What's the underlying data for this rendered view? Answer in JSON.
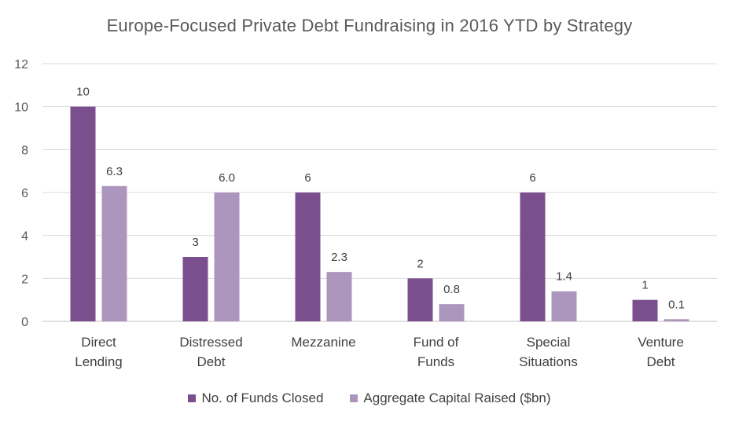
{
  "chart_data": {
    "type": "bar",
    "title": "Europe-Focused Private Debt Fundraising in 2016 YTD by Strategy",
    "categories": [
      [
        "Direct",
        "Lending"
      ],
      [
        "Distressed",
        "Debt"
      ],
      [
        "Mezzanine"
      ],
      [
        "Fund of",
        "Funds"
      ],
      [
        "Special",
        "Situations"
      ],
      [
        "Venture",
        "Debt"
      ]
    ],
    "series": [
      {
        "name": "No. of Funds Closed",
        "color": "#7B4F8E",
        "values": [
          10,
          3,
          6,
          2,
          6,
          1
        ],
        "labels": [
          "10",
          "3",
          "6",
          "2",
          "6",
          "1"
        ]
      },
      {
        "name": "Aggregate Capital Raised ($bn)",
        "color": "#AD96BD",
        "values": [
          6.3,
          6.0,
          2.3,
          0.8,
          1.4,
          0.1
        ],
        "labels": [
          "6.3",
          "6.0",
          "2.3",
          "0.8",
          "1.4",
          "0.1"
        ]
      }
    ],
    "ylim": [
      0,
      12
    ],
    "yticks": [
      0,
      2,
      4,
      6,
      8,
      10,
      12
    ],
    "grid": true,
    "legend_position": "bottom"
  }
}
